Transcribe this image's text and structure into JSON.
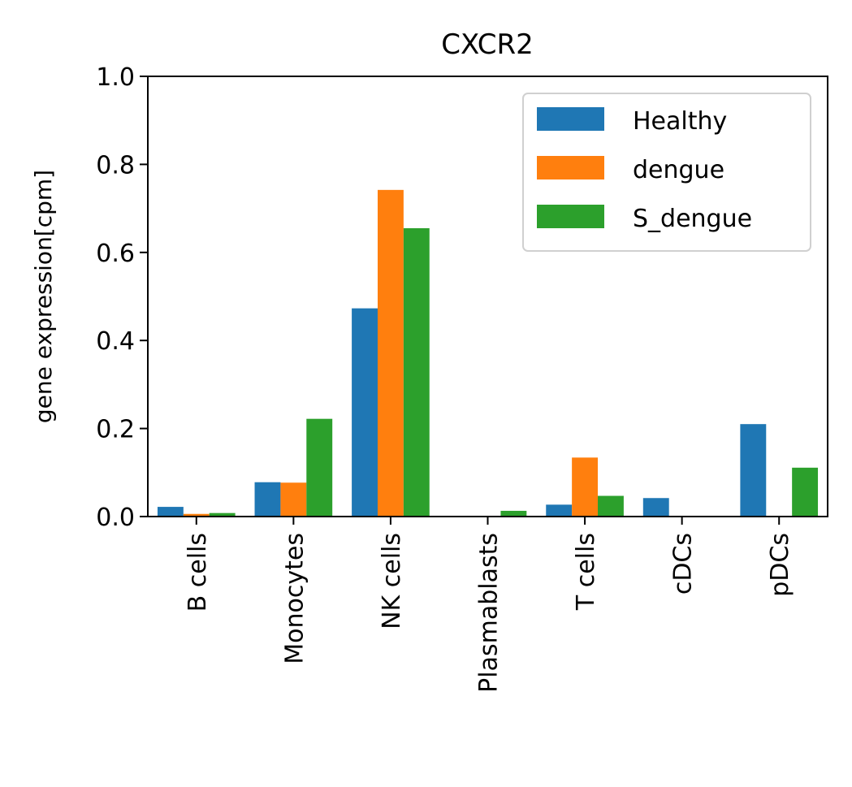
{
  "chart_data": {
    "type": "bar",
    "title": "CXCR2",
    "xlabel": "",
    "ylabel": "gene expression[cpm]",
    "ylim": [
      0,
      1.0
    ],
    "yticks": [
      "0.0",
      "0.2",
      "0.4",
      "0.6",
      "0.8",
      "1.0"
    ],
    "categories": [
      "B cells",
      "Monocytes",
      "NK cells",
      "Plasmablasts",
      "T cells",
      "cDCs",
      "pDCs"
    ],
    "series": [
      {
        "name": "Healthy",
        "color": "#1f77b4",
        "values": [
          0.022,
          0.078,
          0.473,
          0.0,
          0.027,
          0.042,
          0.21
        ]
      },
      {
        "name": "dengue",
        "color": "#ff7f0e",
        "values": [
          0.006,
          0.077,
          0.742,
          0.0,
          0.134,
          0.0,
          0.0
        ]
      },
      {
        "name": "S_dengue",
        "color": "#2ca02c",
        "values": [
          0.008,
          0.222,
          0.655,
          0.013,
          0.047,
          0.0,
          0.111
        ]
      }
    ],
    "grid": false,
    "legend": "top-right"
  }
}
